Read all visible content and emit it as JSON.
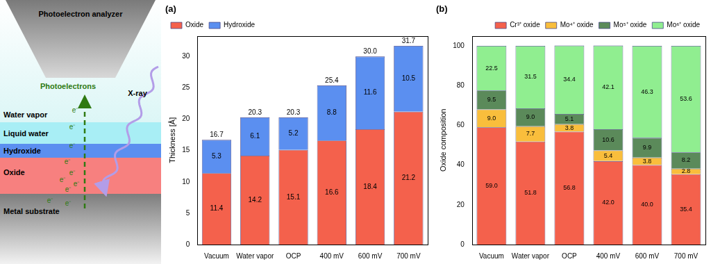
{
  "diagram": {
    "analyzer": "Photoelectron analyzer",
    "xray": "X-ray",
    "photoelectrons": "Photoelectrons",
    "electron": "e⁻",
    "layers": [
      "Water vapor",
      "Liquid water",
      "Hydroxide",
      "Oxide",
      "Metal substrate"
    ]
  },
  "chart_data": [
    {
      "type": "bar",
      "title": "(a)",
      "y_label": "Thickness [Å]",
      "categories": [
        "Vacuum",
        "Water vapor",
        "OCP",
        "400 mV",
        "600 mV",
        "700 mV"
      ],
      "series": [
        {
          "name": "Oxide",
          "color": "#f4614c",
          "values": [
            11.4,
            14.2,
            15.1,
            16.6,
            18.4,
            21.2
          ]
        },
        {
          "name": "Hydroxide",
          "color": "#5b8ff0",
          "values": [
            5.3,
            6.1,
            5.2,
            8.8,
            11.6,
            10.5
          ]
        }
      ],
      "totals": [
        16.7,
        20.3,
        20.3,
        25.4,
        30,
        31.7
      ],
      "total_labels": [
        "16.7",
        "20.3",
        "20.3",
        "25.4",
        "30.0",
        "31.7"
      ],
      "ylim": [
        0,
        33.3
      ],
      "yticks": [
        0,
        5,
        10,
        15,
        20,
        25,
        30
      ],
      "stacked": true,
      "data_labels": true,
      "legend": "upper left",
      "grid": false
    },
    {
      "type": "bar",
      "title": "(b)",
      "y_label": "Oxide composition",
      "categories": [
        "Vacuum",
        "Water vapor",
        "OCP",
        "400 mV",
        "600 mV",
        "700 mV"
      ],
      "series": [
        {
          "name": "Cr³⁺ oxide",
          "color": "#f4614c",
          "values": [
            59.0,
            51.8,
            56.8,
            42.0,
            40.0,
            35.4
          ],
          "value_labels": [
            "59.0",
            "51.8",
            "56.8",
            "42.0",
            "40.0",
            "35.4"
          ]
        },
        {
          "name": "Mo⁴⁺ oxide",
          "color": "#f9be3c",
          "values": [
            9.0,
            7.7,
            3.8,
            5.4,
            3.8,
            2.8
          ],
          "value_labels": [
            "9.0",
            "7.7",
            "3.8",
            "5.4",
            "3.8",
            "2.8"
          ]
        },
        {
          "name": "Mo⁵⁺ oxide",
          "color": "#5b8a5a",
          "values": [
            9.5,
            9.0,
            5.1,
            10.6,
            9.9,
            8.2
          ],
          "value_labels": [
            "9.5",
            "9.0",
            "5.1",
            "10.6",
            "9.9",
            "8.2"
          ]
        },
        {
          "name": "Mo⁶⁺ oxide",
          "color": "#90ee90",
          "values": [
            22.5,
            31.5,
            34.4,
            42.1,
            46.3,
            53.6
          ],
          "value_labels": [
            "22.5",
            "31.5",
            "34.4",
            "42.1",
            "46.3",
            "53.6"
          ]
        }
      ],
      "ylim": [
        0,
        105
      ],
      "yticks": [
        0,
        20,
        40,
        60,
        80,
        100
      ],
      "stacked": true,
      "data_labels": true,
      "legend": "upper right",
      "grid": false
    }
  ]
}
